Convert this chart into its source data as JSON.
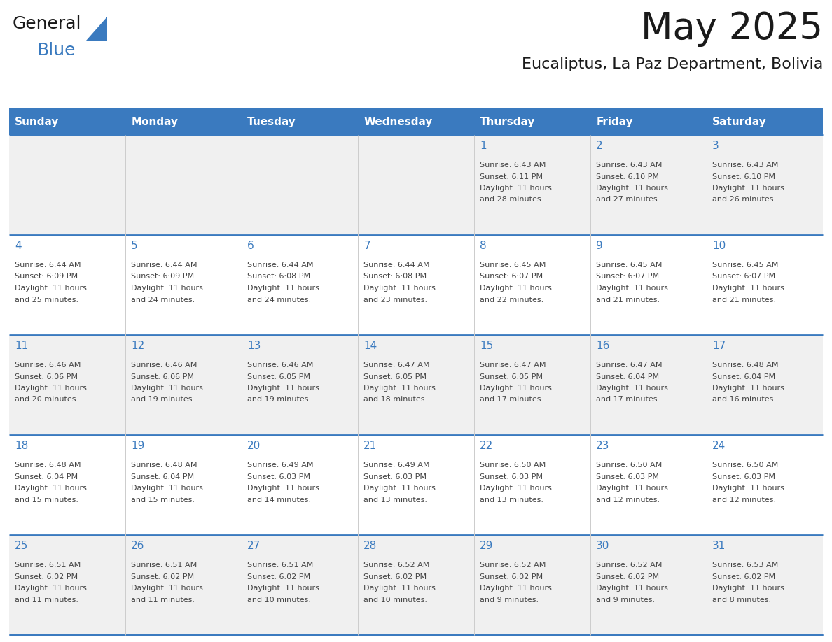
{
  "title": "May 2025",
  "subtitle": "Eucaliptus, La Paz Department, Bolivia",
  "days_of_week": [
    "Sunday",
    "Monday",
    "Tuesday",
    "Wednesday",
    "Thursday",
    "Friday",
    "Saturday"
  ],
  "header_bg": "#3a7abf",
  "header_text": "#ffffff",
  "cell_bg_odd": "#f0f0f0",
  "cell_bg_even": "#ffffff",
  "border_color": "#3a7abf",
  "text_color": "#444444",
  "day_number_color": "#3a7abf",
  "separator_color": "#aaaaaa",
  "calendar_data": [
    [
      null,
      null,
      null,
      null,
      {
        "day": 1,
        "sunrise": "6:43 AM",
        "sunset": "6:11 PM",
        "daylight": "11 hours and 28 minutes."
      },
      {
        "day": 2,
        "sunrise": "6:43 AM",
        "sunset": "6:10 PM",
        "daylight": "11 hours and 27 minutes."
      },
      {
        "day": 3,
        "sunrise": "6:43 AM",
        "sunset": "6:10 PM",
        "daylight": "11 hours and 26 minutes."
      }
    ],
    [
      {
        "day": 4,
        "sunrise": "6:44 AM",
        "sunset": "6:09 PM",
        "daylight": "11 hours and 25 minutes."
      },
      {
        "day": 5,
        "sunrise": "6:44 AM",
        "sunset": "6:09 PM",
        "daylight": "11 hours and 24 minutes."
      },
      {
        "day": 6,
        "sunrise": "6:44 AM",
        "sunset": "6:08 PM",
        "daylight": "11 hours and 24 minutes."
      },
      {
        "day": 7,
        "sunrise": "6:44 AM",
        "sunset": "6:08 PM",
        "daylight": "11 hours and 23 minutes."
      },
      {
        "day": 8,
        "sunrise": "6:45 AM",
        "sunset": "6:07 PM",
        "daylight": "11 hours and 22 minutes."
      },
      {
        "day": 9,
        "sunrise": "6:45 AM",
        "sunset": "6:07 PM",
        "daylight": "11 hours and 21 minutes."
      },
      {
        "day": 10,
        "sunrise": "6:45 AM",
        "sunset": "6:07 PM",
        "daylight": "11 hours and 21 minutes."
      }
    ],
    [
      {
        "day": 11,
        "sunrise": "6:46 AM",
        "sunset": "6:06 PM",
        "daylight": "11 hours and 20 minutes."
      },
      {
        "day": 12,
        "sunrise": "6:46 AM",
        "sunset": "6:06 PM",
        "daylight": "11 hours and 19 minutes."
      },
      {
        "day": 13,
        "sunrise": "6:46 AM",
        "sunset": "6:05 PM",
        "daylight": "11 hours and 19 minutes."
      },
      {
        "day": 14,
        "sunrise": "6:47 AM",
        "sunset": "6:05 PM",
        "daylight": "11 hours and 18 minutes."
      },
      {
        "day": 15,
        "sunrise": "6:47 AM",
        "sunset": "6:05 PM",
        "daylight": "11 hours and 17 minutes."
      },
      {
        "day": 16,
        "sunrise": "6:47 AM",
        "sunset": "6:04 PM",
        "daylight": "11 hours and 17 minutes."
      },
      {
        "day": 17,
        "sunrise": "6:48 AM",
        "sunset": "6:04 PM",
        "daylight": "11 hours and 16 minutes."
      }
    ],
    [
      {
        "day": 18,
        "sunrise": "6:48 AM",
        "sunset": "6:04 PM",
        "daylight": "11 hours and 15 minutes."
      },
      {
        "day": 19,
        "sunrise": "6:48 AM",
        "sunset": "6:04 PM",
        "daylight": "11 hours and 15 minutes."
      },
      {
        "day": 20,
        "sunrise": "6:49 AM",
        "sunset": "6:03 PM",
        "daylight": "11 hours and 14 minutes."
      },
      {
        "day": 21,
        "sunrise": "6:49 AM",
        "sunset": "6:03 PM",
        "daylight": "11 hours and 13 minutes."
      },
      {
        "day": 22,
        "sunrise": "6:50 AM",
        "sunset": "6:03 PM",
        "daylight": "11 hours and 13 minutes."
      },
      {
        "day": 23,
        "sunrise": "6:50 AM",
        "sunset": "6:03 PM",
        "daylight": "11 hours and 12 minutes."
      },
      {
        "day": 24,
        "sunrise": "6:50 AM",
        "sunset": "6:03 PM",
        "daylight": "11 hours and 12 minutes."
      }
    ],
    [
      {
        "day": 25,
        "sunrise": "6:51 AM",
        "sunset": "6:02 PM",
        "daylight": "11 hours and 11 minutes."
      },
      {
        "day": 26,
        "sunrise": "6:51 AM",
        "sunset": "6:02 PM",
        "daylight": "11 hours and 11 minutes."
      },
      {
        "day": 27,
        "sunrise": "6:51 AM",
        "sunset": "6:02 PM",
        "daylight": "11 hours and 10 minutes."
      },
      {
        "day": 28,
        "sunrise": "6:52 AM",
        "sunset": "6:02 PM",
        "daylight": "11 hours and 10 minutes."
      },
      {
        "day": 29,
        "sunrise": "6:52 AM",
        "sunset": "6:02 PM",
        "daylight": "11 hours and 9 minutes."
      },
      {
        "day": 30,
        "sunrise": "6:52 AM",
        "sunset": "6:02 PM",
        "daylight": "11 hours and 9 minutes."
      },
      {
        "day": 31,
        "sunrise": "6:53 AM",
        "sunset": "6:02 PM",
        "daylight": "11 hours and 8 minutes."
      }
    ]
  ]
}
